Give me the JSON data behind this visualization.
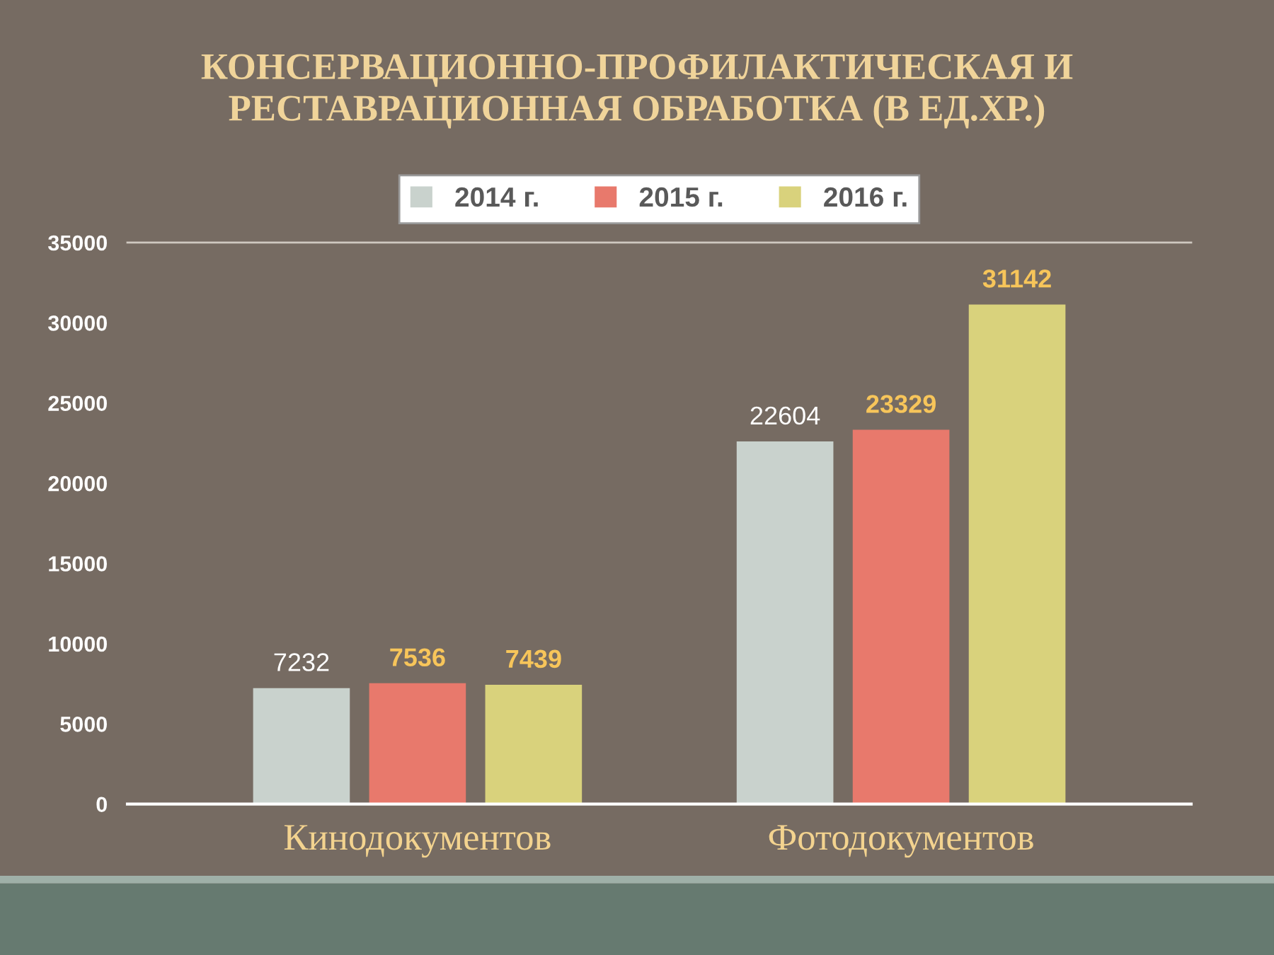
{
  "chart_data": {
    "type": "bar",
    "title": "КОНСЕРВАЦИОННО-ПРОФИЛАКТИЧЕСКАЯ И\nРЕСТАВРАЦИОННАЯ ОБРАБОТКА (В ЕД.ХР.)",
    "categories": [
      "Кинодокументов",
      "Фотодокументов"
    ],
    "series": [
      {
        "name": "2014 г.",
        "color": "#c9d2cd",
        "values": [
          7232,
          22604
        ]
      },
      {
        "name": "2015 г.",
        "color": "#e8796c",
        "values": [
          7536,
          23329
        ]
      },
      {
        "name": "2016 г.",
        "color": "#d9d27c",
        "values": [
          7439,
          31142
        ]
      }
    ],
    "ylim": [
      0,
      35000
    ],
    "yticks": [
      0,
      5000,
      10000,
      15000,
      20000,
      25000,
      30000,
      35000
    ],
    "data_labels": true,
    "legend": "top",
    "grid": false
  }
}
